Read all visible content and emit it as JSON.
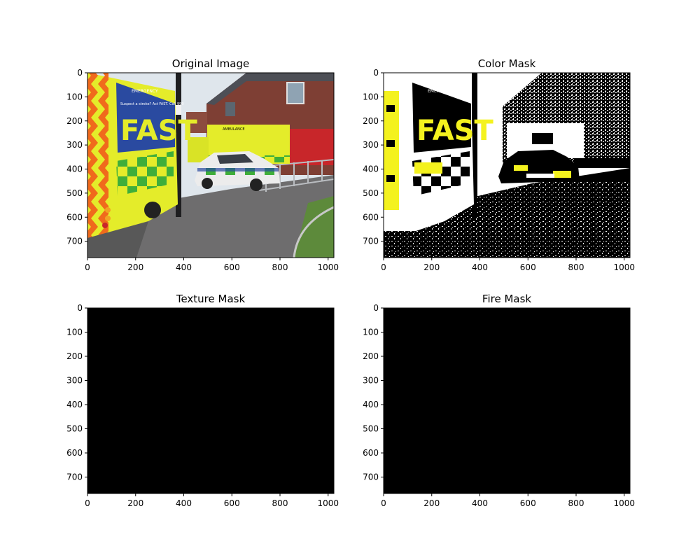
{
  "figure": {
    "background": "#ffffff"
  },
  "chart_data": [
    {
      "type": "image",
      "title": "Original Image",
      "content": "photo",
      "xlim": [
        0,
        1024
      ],
      "ylim": [
        768,
        0
      ],
      "xticks": [
        0,
        200,
        400,
        600,
        800,
        1000
      ],
      "yticks": [
        0,
        100,
        200,
        300,
        400,
        500,
        600,
        700
      ],
      "xticklabels": [
        "0",
        "200",
        "400",
        "600",
        "800",
        "1000"
      ],
      "yticklabels": [
        "0",
        "100",
        "200",
        "300",
        "400",
        "500",
        "600",
        "700"
      ],
      "colors": {
        "ambulance": "#e4ec2a",
        "check_green": "#3fae3a",
        "chevron_orange": "#f06a1c",
        "panel_blue": "#2a4aa0",
        "sky": "#dfe6ec",
        "brick": "#7e3f34",
        "pavement": "#6e6d6e",
        "grass": "#5d8a3b"
      }
    },
    {
      "type": "image",
      "title": "Color Mask",
      "content": "binary-mask",
      "xlim": [
        0,
        1024
      ],
      "ylim": [
        768,
        0
      ],
      "xticks": [
        0,
        200,
        400,
        600,
        800,
        1000
      ],
      "yticks": [
        0,
        100,
        200,
        300,
        400,
        500,
        600,
        700
      ],
      "xticklabels": [
        "0",
        "200",
        "400",
        "600",
        "800",
        "1000"
      ],
      "yticklabels": [
        "0",
        "100",
        "200",
        "300",
        "400",
        "500",
        "600",
        "700"
      ],
      "colors": {
        "foreground": "#ffffff",
        "background": "#000000",
        "highlight": "#f4f21e"
      }
    },
    {
      "type": "image",
      "title": "Texture Mask",
      "content": "empty-mask",
      "xlim": [
        0,
        1024
      ],
      "ylim": [
        768,
        0
      ],
      "xticks": [
        0,
        200,
        400,
        600,
        800,
        1000
      ],
      "yticks": [
        0,
        100,
        200,
        300,
        400,
        500,
        600,
        700
      ],
      "xticklabels": [
        "0",
        "200",
        "400",
        "600",
        "800",
        "1000"
      ],
      "yticklabels": [
        "0",
        "100",
        "200",
        "300",
        "400",
        "500",
        "600",
        "700"
      ],
      "colors": {
        "fill": "#000000"
      }
    },
    {
      "type": "image",
      "title": "Fire Mask",
      "content": "empty-mask",
      "xlim": [
        0,
        1024
      ],
      "ylim": [
        768,
        0
      ],
      "xticks": [
        0,
        200,
        400,
        600,
        800,
        1000
      ],
      "yticks": [
        0,
        100,
        200,
        300,
        400,
        500,
        600,
        700
      ],
      "xticklabels": [
        "0",
        "200",
        "400",
        "600",
        "800",
        "1000"
      ],
      "yticklabels": [
        "0",
        "100",
        "200",
        "300",
        "400",
        "500",
        "600",
        "700"
      ],
      "colors": {
        "fill": "#000000"
      }
    }
  ],
  "photo_text": {
    "emergency": "EMERGENCY",
    "fast": "FAST",
    "stroke_line": "Suspect a stroke? Act FAST. Call 999",
    "ambulance": "AMBULANCE"
  }
}
